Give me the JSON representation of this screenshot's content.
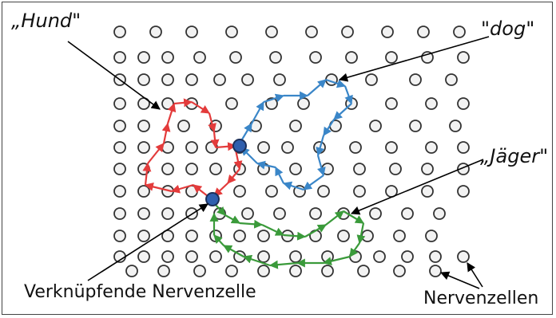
{
  "labels": {
    "hund": "„Hund\"",
    "dog": "\"dog\"",
    "jaeger": "„Jäger\"",
    "connector": "Verknüpfende Nervenzelle",
    "neurons": "Nervenzellen"
  },
  "colors": {
    "red_path": "#e33b3b",
    "blue_path": "#3a86c8",
    "green_path": "#3a9a3a",
    "connector_fill": "#2f5fae",
    "neuron_stroke": "#333333",
    "neuron_fill": "#f2f2f2",
    "pointer": "#000000"
  }
}
